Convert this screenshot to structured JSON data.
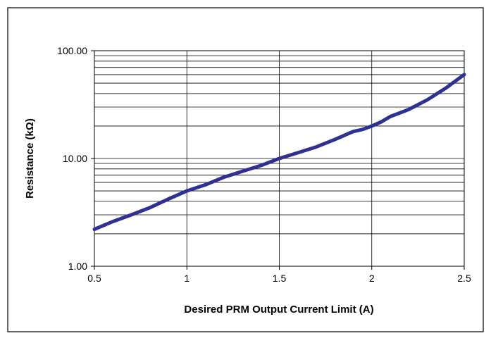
{
  "chart_data": {
    "type": "line",
    "title": "",
    "xlabel": "Desired PRM Output Current Limit (A)",
    "ylabel": "Resistance (kΩ)",
    "x_scale": "linear",
    "y_scale": "log",
    "xlim": [
      0.5,
      2.5
    ],
    "ylim": [
      1,
      100
    ],
    "x_ticks": [
      "0.5",
      "1",
      "1.5",
      "2",
      "2.5"
    ],
    "y_ticks": [
      "1.00",
      "10.00",
      "100.00"
    ],
    "grid": true,
    "legend": "none",
    "series": [
      {
        "color": "#2e3192",
        "x": [
          0.5,
          0.6,
          0.7,
          0.8,
          0.9,
          1.0,
          1.1,
          1.2,
          1.3,
          1.4,
          1.5,
          1.6,
          1.7,
          1.8,
          1.9,
          1.95,
          2.0,
          2.05,
          2.1,
          2.2,
          2.3,
          2.4,
          2.5
        ],
        "y": [
          2.2,
          2.6,
          3.0,
          3.5,
          4.2,
          5.0,
          5.7,
          6.7,
          7.6,
          8.6,
          10.0,
          11.3,
          12.8,
          15.0,
          17.8,
          18.6,
          20.0,
          21.8,
          24.5,
          28.5,
          35.0,
          45.0,
          60.0
        ]
      }
    ]
  }
}
